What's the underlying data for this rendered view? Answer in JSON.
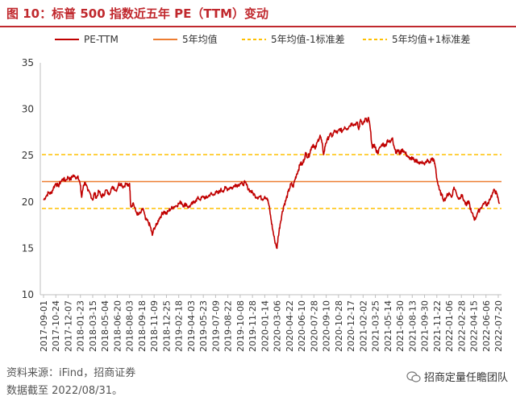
{
  "figure": {
    "title": "图 10：标普 500 指数近五年 PE（TTM）变动",
    "source": "资料来源：iFind，招商证券",
    "date_note": "数据截至 2022/08/31。",
    "watermark": "招商定量任瞻团队"
  },
  "colors": {
    "title": "#c0282d",
    "pe_line": "#c00000",
    "mean_line": "#ed7d31",
    "band_line": "#ffc000",
    "axis": "#bfbfbf",
    "text": "#333333"
  },
  "chart_data": {
    "type": "line",
    "title": "",
    "xlabel": "",
    "ylabel": "",
    "ylim": [
      10,
      35
    ],
    "yticks": [
      10,
      15,
      20,
      25,
      30,
      35
    ],
    "grid": false,
    "legend_position": "top",
    "x_tick_labels": [
      "2017-09-01",
      "2017-10-24",
      "2017-12-07",
      "2018-01-23",
      "2018-03-15",
      "2018-05-04",
      "2018-06-20",
      "2018-08-03",
      "2018-09-18",
      "2018-11-09",
      "2018-12-25",
      "2019-02-18",
      "2019-04-03",
      "2019-05-23",
      "2019-07-09",
      "2019-08-22",
      "2019-10-08",
      "2019-11-28",
      "2020-01-14",
      "2020-03-06",
      "2020-04-22",
      "2020-06-10",
      "2020-07-28",
      "2020-09-10",
      "2020-10-28",
      "2020-12-17",
      "2021-02-02",
      "2021-03-25",
      "2021-05-14",
      "2021-06-30",
      "2021-08-13",
      "2021-09-30",
      "2021-11-22",
      "2022-01-06",
      "2022-02-28",
      "2022-04-15",
      "2022-06-06",
      "2022-07-20"
    ],
    "series": [
      {
        "name": "PE-TTM",
        "style": "line",
        "x": [
          0,
          2,
          3,
          6,
          9,
          12,
          13,
          14,
          15,
          16,
          18,
          19,
          20,
          22,
          23,
          24,
          25,
          26,
          27,
          28,
          29,
          30,
          31,
          32,
          33,
          34,
          35,
          36,
          37
        ],
        "values": [
          20.7,
          22.7,
          21.8,
          22.0,
          16.5,
          20.0,
          20.6,
          21.1,
          21.5,
          22.0,
          20.5,
          15.0,
          22.0,
          26.2,
          27.5,
          27.7,
          28.4,
          29.0,
          26.0,
          26.7,
          25.6,
          24.8,
          24.8,
          22.3,
          20.5,
          20.0,
          19.0,
          19.5,
          20.5
        ],
        "points": [
          [
            0,
            20.2
          ],
          [
            0.2,
            20.6
          ],
          [
            0.4,
            21.0
          ],
          [
            0.6,
            20.9
          ],
          [
            0.8,
            21.5
          ],
          [
            1.0,
            22.0
          ],
          [
            1.2,
            21.7
          ],
          [
            1.4,
            22.2
          ],
          [
            1.6,
            22.5
          ],
          [
            1.8,
            22.3
          ],
          [
            2.0,
            22.7
          ],
          [
            2.2,
            22.4
          ],
          [
            2.4,
            22.9
          ],
          [
            2.6,
            22.6
          ],
          [
            2.8,
            22.8
          ],
          [
            3.0,
            21.8
          ],
          [
            3.1,
            20.5
          ],
          [
            3.25,
            21.8
          ],
          [
            3.4,
            22.1
          ],
          [
            3.6,
            21.2
          ],
          [
            3.8,
            20.9
          ],
          [
            4.0,
            20.2
          ],
          [
            4.15,
            21.0
          ],
          [
            4.3,
            20.4
          ],
          [
            4.5,
            21.2
          ],
          [
            4.7,
            20.6
          ],
          [
            4.9,
            20.8
          ],
          [
            5.1,
            21.3
          ],
          [
            5.3,
            20.8
          ],
          [
            5.5,
            21.4
          ],
          [
            5.7,
            21.6
          ],
          [
            5.9,
            21.2
          ],
          [
            6.1,
            21.9
          ],
          [
            6.3,
            22.0
          ],
          [
            6.5,
            21.6
          ],
          [
            6.7,
            22.0
          ],
          [
            6.9,
            21.7
          ],
          [
            7.0,
            22.0
          ],
          [
            7.1,
            19.5
          ],
          [
            7.3,
            19.9
          ],
          [
            7.5,
            19.0
          ],
          [
            7.7,
            18.6
          ],
          [
            7.9,
            18.8
          ],
          [
            8.1,
            19.3
          ],
          [
            8.3,
            18.1
          ],
          [
            8.5,
            17.9
          ],
          [
            8.7,
            17.3
          ],
          [
            8.85,
            16.4
          ],
          [
            9.0,
            17.2
          ],
          [
            9.2,
            17.5
          ],
          [
            9.4,
            18.2
          ],
          [
            9.6,
            18.6
          ],
          [
            9.8,
            19.0
          ],
          [
            10.0,
            18.7
          ],
          [
            10.2,
            19.1
          ],
          [
            10.4,
            19.3
          ],
          [
            10.6,
            19.5
          ],
          [
            10.8,
            19.6
          ],
          [
            11.0,
            19.8
          ],
          [
            11.2,
            20.0
          ],
          [
            11.4,
            19.6
          ],
          [
            11.6,
            19.8
          ],
          [
            11.8,
            19.4
          ],
          [
            12.0,
            19.7
          ],
          [
            12.2,
            19.9
          ],
          [
            12.4,
            20.2
          ],
          [
            12.6,
            20.4
          ],
          [
            12.8,
            20.3
          ],
          [
            13.0,
            20.6
          ],
          [
            13.2,
            20.4
          ],
          [
            13.4,
            20.6
          ],
          [
            13.6,
            20.9
          ],
          [
            13.8,
            20.7
          ],
          [
            14.0,
            21.1
          ],
          [
            14.2,
            20.9
          ],
          [
            14.4,
            21.3
          ],
          [
            14.6,
            21.2
          ],
          [
            14.8,
            21.5
          ],
          [
            15.0,
            21.4
          ],
          [
            15.2,
            21.6
          ],
          [
            15.4,
            21.5
          ],
          [
            15.6,
            21.9
          ],
          [
            15.8,
            21.8
          ],
          [
            16.0,
            22.0
          ],
          [
            16.2,
            21.9
          ],
          [
            16.4,
            22.1
          ],
          [
            16.6,
            21.6
          ],
          [
            16.8,
            21.2
          ],
          [
            17.0,
            21.0
          ],
          [
            17.2,
            20.7
          ],
          [
            17.4,
            20.5
          ],
          [
            17.6,
            20.6
          ],
          [
            17.8,
            20.3
          ],
          [
            18.0,
            20.6
          ],
          [
            18.2,
            20.4
          ],
          [
            18.35,
            19.6
          ],
          [
            18.5,
            18.2
          ],
          [
            18.65,
            17.0
          ],
          [
            18.8,
            15.9
          ],
          [
            19.0,
            15.0
          ],
          [
            19.1,
            16.3
          ],
          [
            19.25,
            17.6
          ],
          [
            19.4,
            18.7
          ],
          [
            19.55,
            19.6
          ],
          [
            19.7,
            20.1
          ],
          [
            19.85,
            20.8
          ],
          [
            20.0,
            21.4
          ],
          [
            20.15,
            22.0
          ],
          [
            20.3,
            21.6
          ],
          [
            20.45,
            22.4
          ],
          [
            20.6,
            23.0
          ],
          [
            20.75,
            23.5
          ],
          [
            20.9,
            24.2
          ],
          [
            21.05,
            24.0
          ],
          [
            21.2,
            24.6
          ],
          [
            21.35,
            25.3
          ],
          [
            21.5,
            24.8
          ],
          [
            21.65,
            25.2
          ],
          [
            21.8,
            25.9
          ],
          [
            21.95,
            26.2
          ],
          [
            22.1,
            25.7
          ],
          [
            22.3,
            26.5
          ],
          [
            22.5,
            27.2
          ],
          [
            22.65,
            26.4
          ],
          [
            22.8,
            25.1
          ],
          [
            22.95,
            26.3
          ],
          [
            23.1,
            26.7
          ],
          [
            23.3,
            27.3
          ],
          [
            23.5,
            27.1
          ],
          [
            23.7,
            27.7
          ],
          [
            23.9,
            27.4
          ],
          [
            24.1,
            27.9
          ],
          [
            24.3,
            27.6
          ],
          [
            24.5,
            28.1
          ],
          [
            24.7,
            27.9
          ],
          [
            24.9,
            28.2
          ],
          [
            25.1,
            28.5
          ],
          [
            25.3,
            28.3
          ],
          [
            25.5,
            28.6
          ],
          [
            25.65,
            27.8
          ],
          [
            25.8,
            28.9
          ],
          [
            26.0,
            28.4
          ],
          [
            26.2,
            29.0
          ],
          [
            26.35,
            28.6
          ],
          [
            26.45,
            29.1
          ],
          [
            26.6,
            27.7
          ],
          [
            26.75,
            25.8
          ],
          [
            26.9,
            26.2
          ],
          [
            27.05,
            25.6
          ],
          [
            27.2,
            25.3
          ],
          [
            27.4,
            25.9
          ],
          [
            27.6,
            26.3
          ],
          [
            27.8,
            26.0
          ],
          [
            28.0,
            26.7
          ],
          [
            28.2,
            26.4
          ],
          [
            28.4,
            26.9
          ],
          [
            28.5,
            26.1
          ],
          [
            28.7,
            25.3
          ],
          [
            28.85,
            25.6
          ],
          [
            29.0,
            25.2
          ],
          [
            29.2,
            25.7
          ],
          [
            29.4,
            25.3
          ],
          [
            29.6,
            25.0
          ],
          [
            29.8,
            24.6
          ],
          [
            30.0,
            24.8
          ],
          [
            30.2,
            24.3
          ],
          [
            30.4,
            24.5
          ],
          [
            30.6,
            24.1
          ],
          [
            30.8,
            24.4
          ],
          [
            31.0,
            24.0
          ],
          [
            31.2,
            24.5
          ],
          [
            31.4,
            24.2
          ],
          [
            31.6,
            24.7
          ],
          [
            31.75,
            24.5
          ],
          [
            31.9,
            23.7
          ],
          [
            32.0,
            22.5
          ],
          [
            32.2,
            21.3
          ],
          [
            32.4,
            20.7
          ],
          [
            32.6,
            20.2
          ],
          [
            32.8,
            20.6
          ],
          [
            33.0,
            21.0
          ],
          [
            33.2,
            20.5
          ],
          [
            33.4,
            21.6
          ],
          [
            33.6,
            20.9
          ],
          [
            33.8,
            20.3
          ],
          [
            34.0,
            20.8
          ],
          [
            34.2,
            20.2
          ],
          [
            34.4,
            19.6
          ],
          [
            34.6,
            20.1
          ],
          [
            34.8,
            18.9
          ],
          [
            35.0,
            18.4
          ],
          [
            35.1,
            18.1
          ],
          [
            35.3,
            18.8
          ],
          [
            35.5,
            19.2
          ],
          [
            35.7,
            19.6
          ],
          [
            35.9,
            20.0
          ],
          [
            36.1,
            19.6
          ],
          [
            36.3,
            20.3
          ],
          [
            36.5,
            20.8
          ],
          [
            36.7,
            21.3
          ],
          [
            36.85,
            20.9
          ],
          [
            37.0,
            20.3
          ],
          [
            37.1,
            19.8
          ]
        ]
      },
      {
        "name": "5年均值",
        "style": "line",
        "values": [
          22.2
        ]
      },
      {
        "name": "5年均值-1标准差",
        "style": "dashed",
        "values": [
          19.3
        ]
      },
      {
        "name": "5年均值+1标准差",
        "style": "dashed",
        "values": [
          25.1
        ]
      }
    ]
  }
}
